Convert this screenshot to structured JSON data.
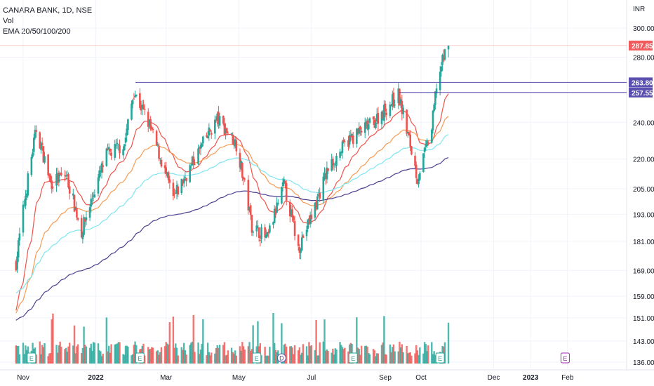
{
  "legend": {
    "symbol": "CANARA BANK, 1D, NSE",
    "vol": "Vol",
    "ema": "EMA 20/50/100/200"
  },
  "colors": {
    "up": "#26a69a",
    "down": "#ef5350",
    "ema20": "#f0524a",
    "ema50": "#f79a52",
    "ema100": "#7ee6f0",
    "ema200": "#4b3f8f",
    "level": "#5b4fb0",
    "last_price": "#f15b5b",
    "vol_up": "#26a69a",
    "vol_down": "#ef5350",
    "earnings_badge": "#26a69a",
    "future_earnings_badge": "#9c27b0",
    "dividend_badge": "#5b4fb0"
  },
  "chart_data": {
    "type": "candlestick",
    "currency": "INR",
    "y_ticks": [
      "300.00",
      "280.00",
      "240.00",
      "220.00",
      "205.00",
      "193.00",
      "181.00",
      "169.00",
      "159.00",
      "151.00",
      "143.00",
      "136.00"
    ],
    "x_ticks": [
      "Nov",
      "2022",
      "Mar",
      "May",
      "Jul",
      "Sep",
      "Oct",
      "Dec",
      "2023",
      "Feb"
    ],
    "last_price": "287.85",
    "levels": [
      {
        "label": "263.80",
        "value": 263.8
      },
      {
        "label": "257.55",
        "value": 257.55
      }
    ],
    "earnings_markers": [
      "Nov",
      "Feb",
      "May",
      "Aug",
      "Oct"
    ],
    "future_earnings_marker": "Feb",
    "dividend_marker": "Jun",
    "earnings_letter": "E",
    "dividend_letter": "D",
    "anchors": [
      {
        "date": "2021-10-26",
        "price": 172
      },
      {
        "date": "2021-11-12",
        "price": 236
      },
      {
        "date": "2021-11-24",
        "price": 208
      },
      {
        "date": "2021-12-07",
        "price": 212
      },
      {
        "date": "2021-12-20",
        "price": 185
      },
      {
        "date": "2022-01-10",
        "price": 222
      },
      {
        "date": "2022-01-25",
        "price": 228
      },
      {
        "date": "2022-02-02",
        "price": 258
      },
      {
        "date": "2022-02-14",
        "price": 240
      },
      {
        "date": "2022-03-07",
        "price": 200
      },
      {
        "date": "2022-03-25",
        "price": 220
      },
      {
        "date": "2022-04-13",
        "price": 242
      },
      {
        "date": "2022-04-29",
        "price": 228
      },
      {
        "date": "2022-05-12",
        "price": 188
      },
      {
        "date": "2022-05-25",
        "price": 182
      },
      {
        "date": "2022-06-08",
        "price": 207
      },
      {
        "date": "2022-06-20",
        "price": 178
      },
      {
        "date": "2022-07-01",
        "price": 192
      },
      {
        "date": "2022-07-15",
        "price": 215
      },
      {
        "date": "2022-08-01",
        "price": 230
      },
      {
        "date": "2022-08-22",
        "price": 240
      },
      {
        "date": "2022-09-12",
        "price": 256
      },
      {
        "date": "2022-09-28",
        "price": 210
      },
      {
        "date": "2022-10-05",
        "price": 225
      },
      {
        "date": "2022-10-10",
        "price": 236
      },
      {
        "date": "2022-10-14",
        "price": 262
      },
      {
        "date": "2022-10-20",
        "price": 280
      },
      {
        "date": "2022-10-24",
        "price": 288
      }
    ]
  }
}
